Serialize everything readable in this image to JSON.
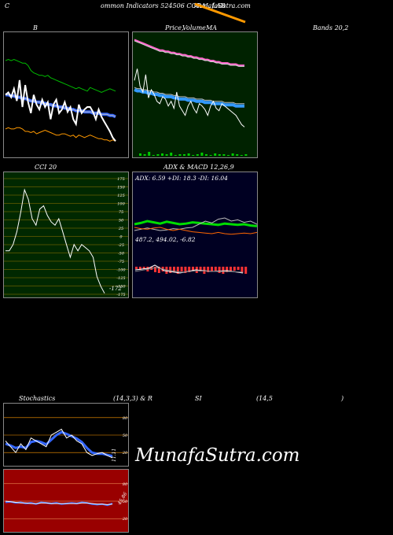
{
  "header": {
    "c": "C",
    "title": "ommon  Indicators 524506  CORAL LAB",
    "site": "MunafaSutra.com"
  },
  "labels": {
    "b": "B",
    "price_a": "Price,",
    "price_b": "Volume",
    "price_c": "MA",
    "bands": "Bands 20,2",
    "cci": "CCI 20",
    "adx_macd": "ADX  & MACD 12,26,9",
    "adx_vals": "ADX: 6.59  +DI: 18.3  -DI: 16.04",
    "macd_vals": "487.2,  494.02,  -6.82",
    "stoch": "Stochastics",
    "stoch_params": "(14,3,3) & R",
    "si": "SI",
    "rsi_params": "(14,5",
    "close_paren": ")",
    "stoch_now": "11.11",
    "rsi_now": "45.86"
  },
  "watermark": "MunafaSutra.com",
  "colors": {
    "price_bg": "#002200",
    "cci_bg": "#002800",
    "adx_bg": "#000022",
    "rsi_bg": "#990000",
    "orange": "#ff9900",
    "green": "#00cc00"
  },
  "chart_data": [
    {
      "type": "line",
      "title": "Bollinger Bands 20,2",
      "series": [
        {
          "values": [
            78,
            79,
            78,
            79,
            78,
            77,
            76,
            76,
            74,
            70,
            68,
            67,
            66,
            66,
            65,
            66,
            64,
            63,
            62,
            61,
            60,
            59,
            58,
            57,
            56,
            55,
            56,
            55,
            54,
            53,
            56,
            55,
            54,
            53,
            52,
            53,
            54,
            55,
            54,
            53
          ]
        },
        {
          "values": [
            50,
            52,
            48,
            55,
            45,
            62,
            40,
            58,
            44,
            35,
            50,
            42,
            38,
            46,
            40,
            44,
            30,
            42,
            46,
            35,
            38,
            44,
            36,
            40,
            30,
            26,
            42,
            35,
            38,
            40,
            40,
            36,
            30,
            38,
            32,
            28,
            24,
            20,
            15,
            12
          ]
        },
        {
          "values": [
            50,
            50,
            49,
            49,
            48,
            48,
            47,
            47,
            46,
            45,
            45,
            44,
            44,
            43,
            43,
            42,
            42,
            41,
            41,
            40,
            40,
            39,
            39,
            38,
            38,
            37,
            37,
            37,
            36,
            36,
            36,
            35,
            35,
            35,
            34,
            34,
            34,
            33,
            33,
            32
          ]
        },
        {
          "values": [
            22,
            23,
            22,
            22,
            23,
            23,
            22,
            20,
            20,
            19,
            20,
            18,
            19,
            20,
            21,
            20,
            19,
            18,
            17,
            17,
            18,
            18,
            17,
            16,
            17,
            15,
            17,
            16,
            15,
            16,
            17,
            16,
            15,
            14,
            14,
            13,
            13,
            12,
            13,
            12
          ]
        }
      ]
    },
    {
      "type": "line",
      "title": "Price, Volume, MA",
      "series": [
        {
          "values": [
            95,
            94,
            93,
            92,
            91,
            90,
            89,
            88,
            87,
            86,
            86,
            85,
            85,
            84,
            84,
            83,
            83,
            82,
            82,
            81,
            81,
            80,
            80,
            79,
            79,
            78,
            78,
            77,
            77,
            76,
            76,
            75,
            75,
            75,
            74,
            74,
            74,
            73,
            73,
            73
          ]
        },
        {
          "values": [
            60,
            70,
            55,
            50,
            65,
            45,
            52,
            48,
            42,
            40,
            46,
            44,
            38,
            42,
            36,
            50,
            38,
            34,
            30,
            38,
            42,
            36,
            32,
            40,
            38,
            35,
            30,
            38,
            42,
            36,
            34,
            40,
            38,
            36,
            34,
            32,
            30,
            26,
            22,
            20
          ]
        },
        {
          "values": [
            52,
            51,
            51,
            50,
            50,
            49,
            49,
            48,
            48,
            47,
            47,
            46,
            46,
            46,
            45,
            45,
            44,
            44,
            44,
            43,
            43,
            43,
            42,
            42,
            42,
            41,
            41,
            41,
            40,
            40,
            40,
            40,
            39,
            39,
            39,
            39,
            38,
            38,
            38,
            38
          ]
        }
      ]
    },
    {
      "type": "line",
      "title": "CCI 20",
      "yticks": [
        175,
        150,
        125,
        100,
        75,
        50,
        25,
        0,
        -25,
        -50,
        -75,
        -100,
        -125,
        -150,
        -175
      ],
      "ylim": [
        -175,
        175
      ],
      "last_value": "-172",
      "series": [
        {
          "values": [
            -40,
            -40,
            -20,
            20,
            80,
            150,
            120,
            60,
            40,
            90,
            100,
            70,
            50,
            40,
            60,
            20,
            -20,
            -60,
            -20,
            -40,
            -20,
            -30,
            -40,
            -60,
            -120,
            -150,
            -172
          ]
        }
      ]
    },
    {
      "type": "line",
      "title": "ADX & MACD",
      "adx": {
        "value": 6.59,
        "plus_di": 18.3,
        "minus_di": 16.04
      },
      "macd": {
        "macd": 487.2,
        "signal": 494.02,
        "hist": -6.82
      },
      "series": [
        {
          "values": [
            30,
            32,
            35,
            33,
            31,
            34,
            32,
            30,
            31,
            33,
            32,
            31,
            30,
            29,
            31,
            30,
            29,
            30,
            28,
            27
          ]
        },
        {
          "values": [
            20,
            22,
            24,
            22,
            20,
            21,
            23,
            22,
            24,
            25,
            30,
            35,
            32,
            38,
            40,
            35,
            37,
            33,
            35,
            30
          ]
        },
        {
          "values": [
            25,
            23,
            22,
            24,
            25,
            22,
            20,
            22,
            20,
            18,
            17,
            16,
            15,
            17,
            15,
            14,
            15,
            16,
            15,
            17
          ]
        }
      ]
    },
    {
      "type": "line",
      "title": "Stochastics (14,3,3)",
      "yticks": [
        80,
        50,
        20
      ],
      "ylim": [
        0,
        100
      ],
      "last_value": "11.11",
      "series": [
        {
          "values": [
            40,
            30,
            20,
            35,
            25,
            45,
            40,
            35,
            30,
            50,
            55,
            60,
            45,
            50,
            40,
            35,
            20,
            15,
            18,
            20,
            15,
            11
          ]
        },
        {
          "values": [
            35,
            32,
            28,
            30,
            28,
            38,
            40,
            38,
            34,
            42,
            50,
            55,
            52,
            48,
            44,
            38,
            28,
            20,
            18,
            18,
            16,
            14
          ]
        }
      ]
    },
    {
      "type": "line",
      "title": "RSI (14,5)",
      "yticks": [
        80,
        50,
        20
      ],
      "ylim": [
        0,
        100
      ],
      "last_value": "45.86",
      "series": [
        {
          "values": [
            48,
            49,
            47,
            48,
            46,
            47,
            45,
            48,
            47,
            46,
            47,
            45,
            46,
            47,
            46,
            48,
            47,
            45,
            44,
            45,
            43,
            46
          ]
        },
        {
          "values": [
            50,
            49,
            48,
            47,
            47,
            46,
            46,
            47,
            47,
            46,
            46,
            46,
            46,
            46,
            46,
            47,
            47,
            46,
            45,
            45,
            44,
            45
          ]
        }
      ]
    }
  ]
}
